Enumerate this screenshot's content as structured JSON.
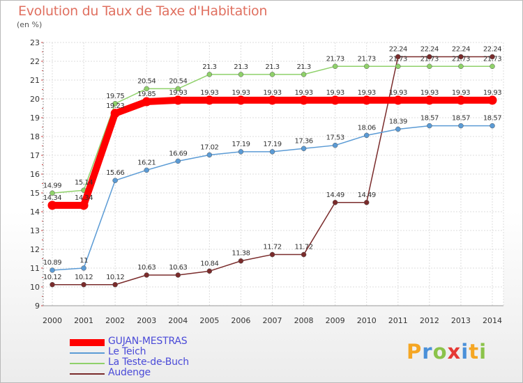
{
  "chart_data": {
    "type": "line",
    "title": "Evolution du Taux de Taxe d'Habitation",
    "subtitle": "(en %)",
    "x": [
      "2000",
      "2001",
      "2002",
      "2003",
      "2004",
      "2005",
      "2006",
      "2007",
      "2008",
      "2009",
      "2010",
      "2011",
      "2012",
      "2013",
      "2014"
    ],
    "ylim": [
      9,
      23
    ],
    "yticks": [
      "9",
      "10",
      "11",
      "12",
      "13",
      "14",
      "15",
      "16",
      "17",
      "18",
      "19",
      "20",
      "21",
      "22",
      "23"
    ],
    "grid": true,
    "legend_position": "bottom-left",
    "series": [
      {
        "name": "GUJAN-MESTRAS",
        "color": "#ff0000",
        "values": [
          14.34,
          14.34,
          19.23,
          19.85,
          19.93,
          19.93,
          19.93,
          19.93,
          19.93,
          19.93,
          19.93,
          19.93,
          19.93,
          19.93,
          19.93
        ],
        "labels": [
          "14.34",
          "14.34",
          "19.23",
          "19.85",
          "19.93",
          "19.93",
          "19.93",
          "19.93",
          "19.93",
          "19.93",
          "19.93",
          "19.93",
          "19.93",
          "19.93",
          "19.93"
        ]
      },
      {
        "name": "Le Teich",
        "color": "#5b9bd5",
        "values": [
          10.89,
          11,
          15.66,
          16.21,
          16.69,
          17.02,
          17.19,
          17.19,
          17.36,
          17.53,
          18.06,
          18.39,
          18.57,
          18.57,
          18.57
        ],
        "labels": [
          "10.89",
          "11",
          "15.66",
          "16.21",
          "16.69",
          "17.02",
          "17.19",
          "17.19",
          "17.36",
          "17.53",
          "18.06",
          "18.39",
          "18.57",
          "18.57",
          "18.57"
        ]
      },
      {
        "name": "La Teste-de-Buch",
        "color": "#8fd16a",
        "values": [
          14.99,
          15.14,
          19.75,
          20.54,
          20.54,
          21.3,
          21.3,
          21.3,
          21.3,
          21.73,
          21.73,
          21.73,
          21.73,
          21.73,
          21.73
        ],
        "labels": [
          "14.99",
          "15.14",
          "19.75",
          "20.54",
          "20.54",
          "21.3",
          "21.3",
          "21.3",
          "21.3",
          "21.73",
          "21.73",
          "21.73",
          "21.73",
          "21.73",
          "21.73"
        ]
      },
      {
        "name": "Audenge",
        "color": "#7a2b2b",
        "values": [
          10.12,
          10.12,
          10.12,
          10.63,
          10.63,
          10.84,
          11.38,
          11.72,
          11.72,
          14.49,
          14.49,
          22.24,
          22.24,
          22.24,
          22.24
        ],
        "labels": [
          "10.12",
          "10.12",
          "10.12",
          "10.63",
          "10.63",
          "10.84",
          "11.38",
          "11.72",
          "11.72",
          "14.49",
          "14.49",
          "22.24",
          "22.24",
          "22.24",
          "22.24"
        ]
      }
    ]
  },
  "brand": {
    "letters": [
      "P",
      "r",
      "o",
      "x",
      "i",
      "t",
      "i"
    ],
    "colors": [
      "#f5a623",
      "#4a90d9",
      "#8bc34a",
      "#e53935",
      "#4a90d9",
      "#f5a623",
      "#8bc34a"
    ]
  }
}
